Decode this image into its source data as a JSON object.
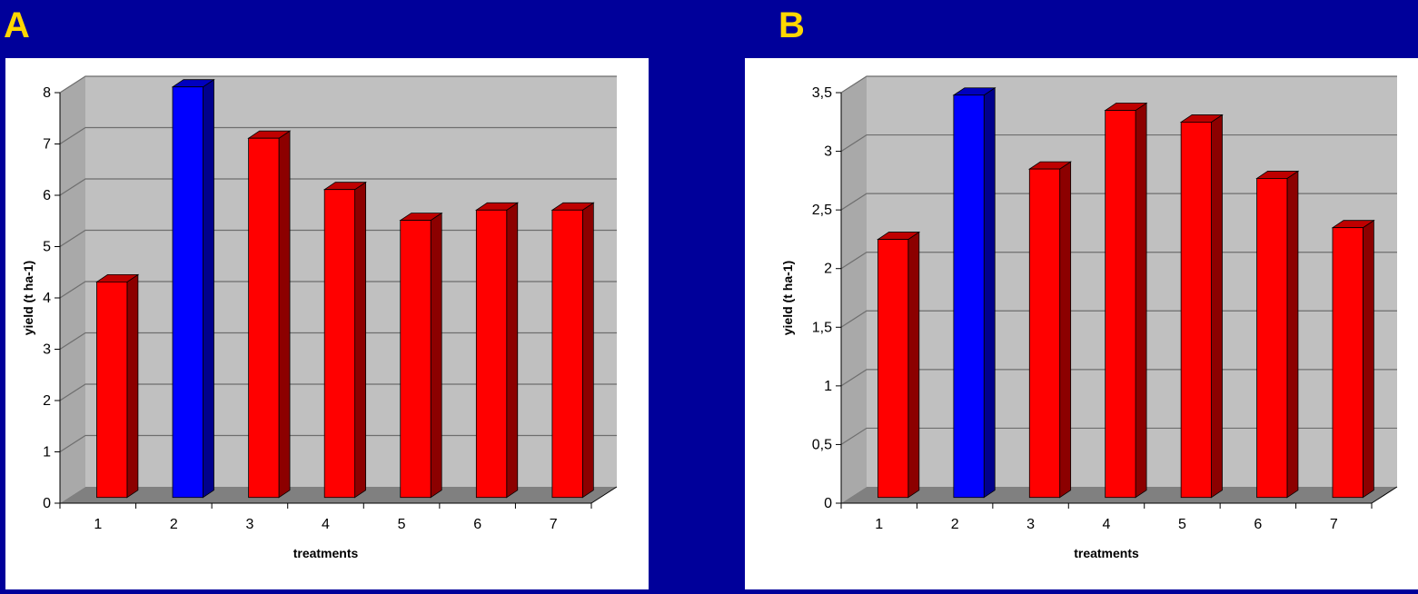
{
  "panels": {
    "a": {
      "letter": "A"
    },
    "b": {
      "letter": "B"
    }
  },
  "chart_data": [
    {
      "type": "bar",
      "categories": [
        "1",
        "2",
        "3",
        "4",
        "5",
        "6",
        "7"
      ],
      "values": [
        4.2,
        8.0,
        7.0,
        6.0,
        5.4,
        5.6,
        5.6
      ],
      "bar_colors": [
        "#ff0000",
        "#0000ff",
        "#ff0000",
        "#ff0000",
        "#ff0000",
        "#ff0000",
        "#ff0000"
      ],
      "xlabel": "treatments",
      "ylabel": "yield (t ha-1)",
      "ylim": [
        0,
        8
      ],
      "yticks": [
        "0",
        "1",
        "2",
        "3",
        "4",
        "5",
        "6",
        "7",
        "8"
      ],
      "grid": true,
      "style": "3d"
    },
    {
      "type": "bar",
      "categories": [
        "1",
        "2",
        "3",
        "4",
        "5",
        "6",
        "7"
      ],
      "values": [
        2.2,
        3.43,
        2.8,
        3.3,
        3.2,
        2.72,
        2.3
      ],
      "bar_colors": [
        "#ff0000",
        "#0000ff",
        "#ff0000",
        "#ff0000",
        "#ff0000",
        "#ff0000",
        "#ff0000"
      ],
      "xlabel": "treatments",
      "ylabel": "yield (t ha-1)",
      "ylim": [
        0,
        3.5
      ],
      "yticks": [
        "0",
        "0,5",
        "1",
        "1,5",
        "2",
        "2,5",
        "3",
        "3,5"
      ],
      "grid": true,
      "style": "3d"
    }
  ]
}
